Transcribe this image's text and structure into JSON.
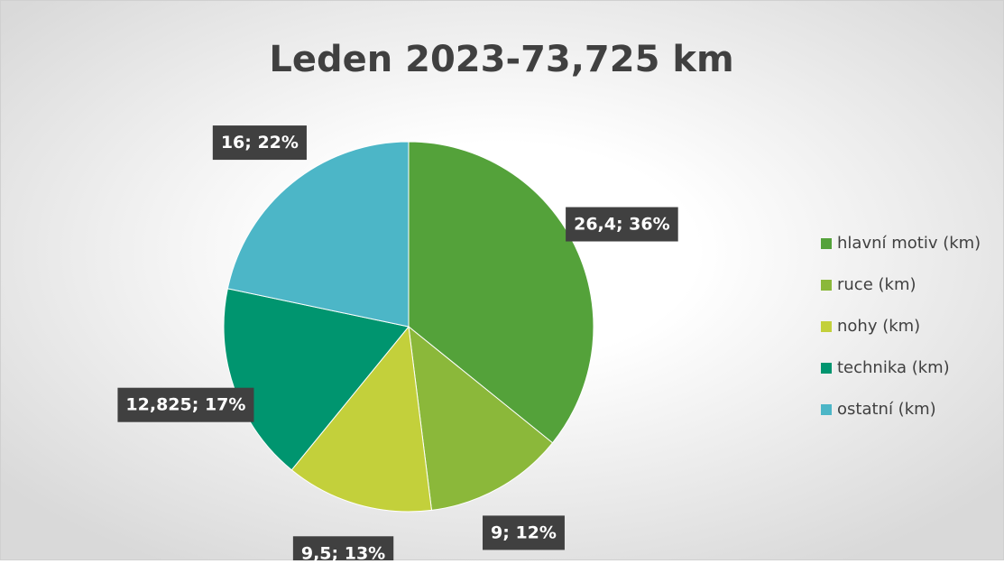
{
  "chart_data": {
    "type": "pie",
    "title": "Leden 2023-73,725 km",
    "categories": [
      "hlavní motiv (km)",
      "ruce (km)",
      "nohy (km)",
      "technika (km)",
      "ostatní (km)"
    ],
    "values": [
      26.4,
      9,
      9.5,
      12.825,
      16
    ],
    "value_labels": [
      "26,4; 36%",
      "9; 12%",
      "9,5; 13%",
      "12,825; 17%",
      "16; 22%"
    ],
    "colors": [
      "#54a23a",
      "#8bb83a",
      "#c3d03b",
      "#00956f",
      "#4cb6c7"
    ],
    "legend": "right"
  }
}
